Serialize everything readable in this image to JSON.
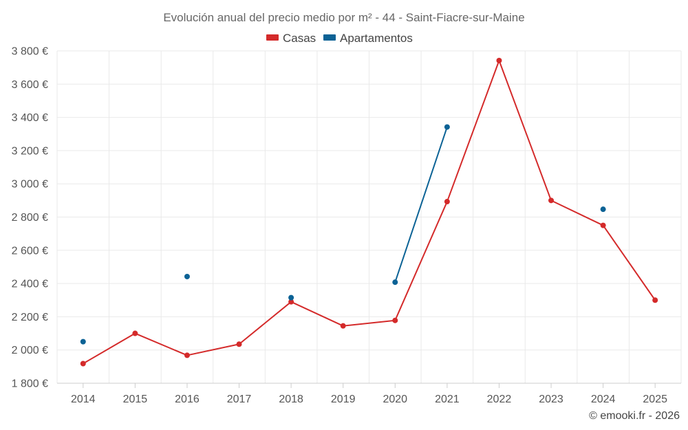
{
  "chart_data": {
    "type": "line",
    "title": "Evolución anual del precio medio por m² - 44 - Saint-Fiacre-sur-Maine",
    "categories": [
      "2014",
      "2015",
      "2016",
      "2017",
      "2018",
      "2019",
      "2020",
      "2021",
      "2022",
      "2023",
      "2024",
      "2025"
    ],
    "series": [
      {
        "name": "Casas",
        "color": "#d42a2a",
        "values": [
          1918,
          2100,
          1968,
          2035,
          2290,
          2145,
          2178,
          2893,
          3742,
          2900,
          2750,
          2300
        ]
      },
      {
        "name": "Apartamentos",
        "color": "#0b6295",
        "values": [
          2050,
          null,
          2442,
          null,
          2315,
          null,
          2408,
          3342,
          null,
          null,
          2847,
          null
        ]
      }
    ],
    "ylim": [
      1800,
      3800
    ],
    "yticks": [
      1800,
      2000,
      2200,
      2400,
      2600,
      2800,
      3000,
      3200,
      3400,
      3600,
      3800
    ],
    "ytick_labels": [
      "1 800 €",
      "2 000 €",
      "2 200 €",
      "2 400 €",
      "2 600 €",
      "2 800 €",
      "3 000 €",
      "3 200 €",
      "3 400 €",
      "3 600 €",
      "3 800 €"
    ],
    "xlabel": "",
    "ylabel": "",
    "grid": true,
    "legend": "top-center"
  },
  "credit": "© emooki.fr - 2026"
}
